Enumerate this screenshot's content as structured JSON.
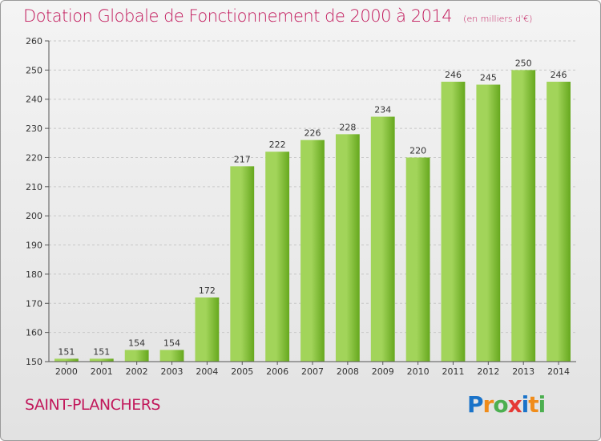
{
  "header": {
    "title": "Dotation Globale de Fonctionnement de 2000 à 2014",
    "unit": "(en milliers d'€)"
  },
  "footer": {
    "commune": "SAINT-PLANCHERS",
    "brand": [
      "P",
      "r",
      "o",
      "x",
      "i",
      "t",
      "i"
    ],
    "brand_colors": [
      "#1a73c9",
      "#f08c1a",
      "#4caf50",
      "#e53935",
      "#1a73c9",
      "#f08c1a",
      "#4caf50"
    ]
  },
  "colors": {
    "accent": "#c2185b",
    "bar_light": "#a2d45a",
    "bar_dark": "#66a81e"
  },
  "chart_data": {
    "type": "bar",
    "title": "Dotation Globale de Fonctionnement de 2000 à 2014",
    "subtitle": "(en milliers d'€)",
    "xlabel": "",
    "ylabel": "",
    "categories": [
      "2000",
      "2001",
      "2002",
      "2003",
      "2004",
      "2005",
      "2006",
      "2007",
      "2008",
      "2009",
      "2010",
      "2011",
      "2012",
      "2013",
      "2014"
    ],
    "values": [
      151,
      151,
      154,
      154,
      172,
      217,
      222,
      226,
      228,
      234,
      220,
      246,
      245,
      250,
      246
    ],
    "ylim": [
      150,
      260
    ],
    "yticks": [
      150,
      160,
      170,
      180,
      190,
      200,
      210,
      220,
      230,
      240,
      250,
      260
    ],
    "grid": true
  }
}
